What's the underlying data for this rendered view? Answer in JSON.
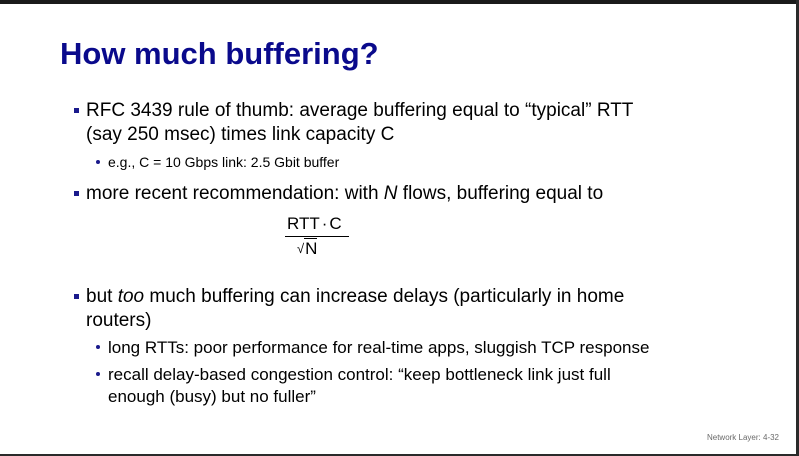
{
  "slide": {
    "title": "How much buffering?",
    "bullets": [
      {
        "lines": [
          "RFC 3439 rule of thumb: average buffering equal to “typical” RTT",
          "(say 250 msec) times link capacity C"
        ],
        "sub": [
          "e.g., C = 10 Gbps link: 2.5 Gbit buffer"
        ]
      },
      {
        "pre": "more recent recommendation: with ",
        "italic": "N",
        "post": " flows, buffering equal to"
      },
      {
        "pre": "but ",
        "italic": "too",
        "post": " much buffering can increase delays (particularly in home",
        "line2": "routers)",
        "sub": [
          "long RTTs: poor performance for real-time apps, sluggish TCP response",
          "recall delay-based congestion control: “keep bottleneck link just full",
          "enough (busy) but no fuller”"
        ]
      }
    ],
    "formula": {
      "numerator_left": "RTT",
      "operator": "·",
      "numerator_right": "C",
      "sqrt_symbol": "√",
      "denominator": "N"
    },
    "footer": "Network Layer: 4-32"
  },
  "colors": {
    "title": "#0a0a8c",
    "bullet_marker": "#1a1a8c",
    "text": "#000000",
    "footer": "#6a6a6a"
  }
}
